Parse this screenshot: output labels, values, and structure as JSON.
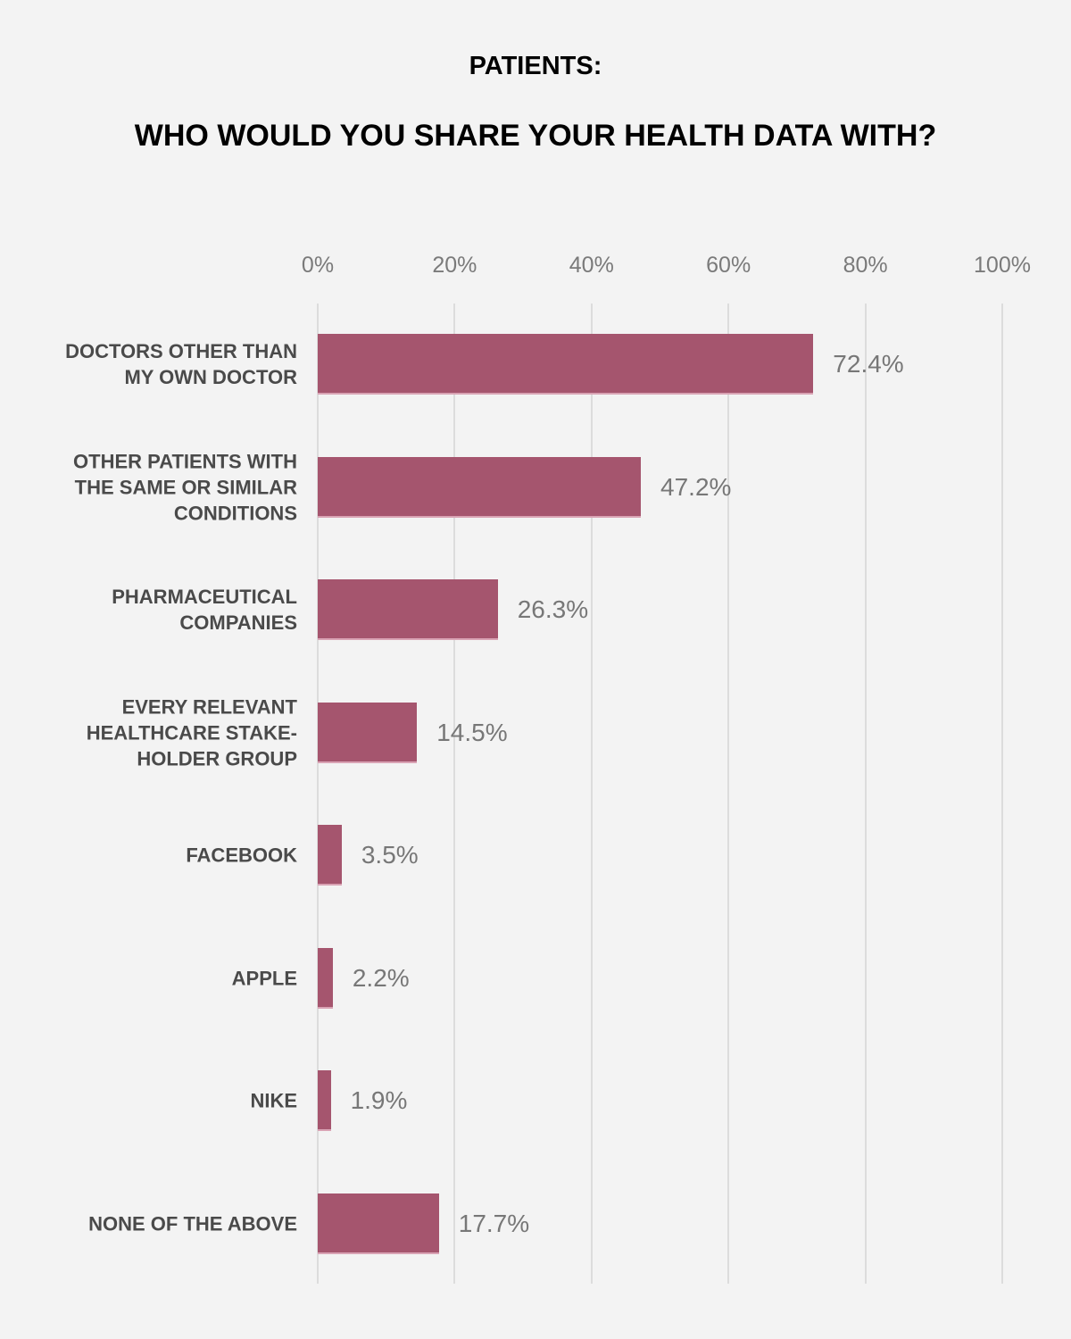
{
  "header": {
    "title": "PATIENTS:",
    "subtitle": "WHO WOULD YOU SHARE YOUR HEALTH DATA WITH?"
  },
  "axis": {
    "ticks": [
      "0%",
      "20%",
      "40%",
      "60%",
      "80%",
      "100%"
    ]
  },
  "colors": {
    "bar": "#a5556e",
    "background": "#f3f3f3",
    "gridline": "#dcdcdc",
    "value_label": "#777777",
    "category_label": "#4a4a4a"
  },
  "bars": [
    {
      "label": "DOCTORS OTHER THAN MY OWN DOCTOR",
      "lines": [
        "DOCTORS OTHER THAN",
        "MY OWN DOCTOR"
      ],
      "value": 72.4,
      "value_label": "72.4%"
    },
    {
      "label": "OTHER PATIENTS WITH THE SAME OR SIMILAR CONDITIONS",
      "lines": [
        "OTHER PATIENTS WITH",
        "THE SAME OR SIMILAR",
        "CONDITIONS"
      ],
      "value": 47.2,
      "value_label": "47.2%"
    },
    {
      "label": "PHARMACEUTICAL COMPANIES",
      "lines": [
        "PHARMACEUTICAL",
        "COMPANIES"
      ],
      "value": 26.3,
      "value_label": "26.3%"
    },
    {
      "label": "EVERY RELEVANT HEALTHCARE STAKE-HOLDER GROUP",
      "lines": [
        "EVERY RELEVANT",
        "HEALTHCARE STAKE-",
        "HOLDER GROUP"
      ],
      "value": 14.5,
      "value_label": "14.5%"
    },
    {
      "label": "FACEBOOK",
      "lines": [
        "FACEBOOK"
      ],
      "value": 3.5,
      "value_label": "3.5%"
    },
    {
      "label": "APPLE",
      "lines": [
        "APPLE"
      ],
      "value": 2.2,
      "value_label": "2.2%"
    },
    {
      "label": "NIKE",
      "lines": [
        "NIKE"
      ],
      "value": 1.9,
      "value_label": "1.9%"
    },
    {
      "label": "NONE OF THE ABOVE",
      "lines": [
        "NONE OF THE ABOVE"
      ],
      "value": 17.7,
      "value_label": "17.7%"
    }
  ],
  "chart_data": {
    "type": "bar",
    "orientation": "horizontal",
    "title": "PATIENTS: WHO WOULD YOU SHARE YOUR HEALTH DATA WITH?",
    "categories": [
      "DOCTORS OTHER THAN MY OWN DOCTOR",
      "OTHER PATIENTS WITH THE SAME OR SIMILAR CONDITIONS",
      "PHARMACEUTICAL COMPANIES",
      "EVERY RELEVANT HEALTHCARE STAKE-HOLDER GROUP",
      "FACEBOOK",
      "APPLE",
      "NIKE",
      "NONE OF THE ABOVE"
    ],
    "values": [
      72.4,
      47.2,
      26.3,
      14.5,
      3.5,
      2.2,
      1.9,
      17.7
    ],
    "data_labels": [
      "72.4%",
      "47.2%",
      "26.3%",
      "14.5%",
      "3.5%",
      "2.2%",
      "1.9%",
      "17.7%"
    ],
    "xlabel": "",
    "ylabel": "",
    "xlim": [
      0,
      100
    ],
    "x_ticks": [
      "0%",
      "20%",
      "40%",
      "60%",
      "80%",
      "100%"
    ],
    "x_axis_position": "top",
    "grid": true,
    "legend": null
  }
}
